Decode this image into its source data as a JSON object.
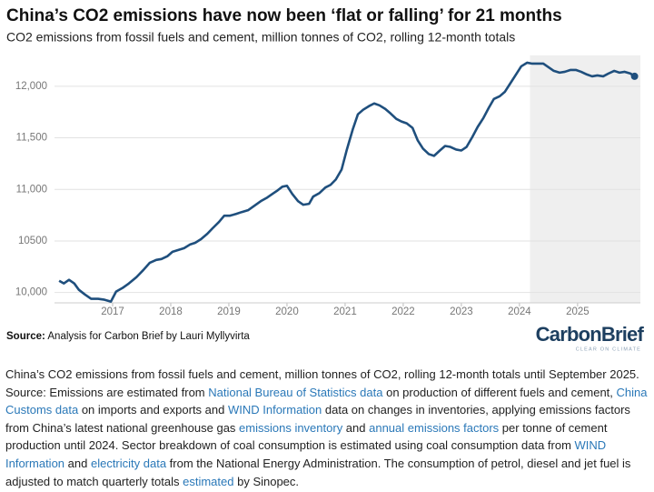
{
  "chart_data": {
    "type": "line",
    "title": "China’s CO2 emissions have now been ‘flat or falling’ for 21 months",
    "subtitle": "CO2 emissions from fossil fuels and cement, million tonnes of CO2, rolling 12-month totals",
    "x": [
      2016.08,
      2016.16,
      2016.25,
      2016.34,
      2016.42,
      2016.52,
      2016.63,
      2016.75,
      2016.86,
      2016.97,
      2017.06,
      2017.17,
      2017.28,
      2017.41,
      2017.53,
      2017.64,
      2017.75,
      2017.84,
      2017.94,
      2018.03,
      2018.13,
      2018.23,
      2018.33,
      2018.42,
      2018.52,
      2018.63,
      2018.72,
      2018.83,
      2018.92,
      2019.02,
      2019.13,
      2019.22,
      2019.33,
      2019.44,
      2019.55,
      2019.66,
      2019.75,
      2019.84,
      2019.92,
      2020.0,
      2020.09,
      2020.19,
      2020.28,
      2020.38,
      2020.45,
      2020.56,
      2020.66,
      2020.75,
      2020.84,
      2020.94,
      2021.03,
      2021.13,
      2021.22,
      2021.31,
      2021.41,
      2021.5,
      2021.59,
      2021.69,
      2021.78,
      2021.88,
      2021.97,
      2022.06,
      2022.16,
      2022.25,
      2022.34,
      2022.44,
      2022.53,
      2022.63,
      2022.72,
      2022.81,
      2022.91,
      2023.0,
      2023.09,
      2023.19,
      2023.28,
      2023.38,
      2023.47,
      2023.56,
      2023.66,
      2023.75,
      2023.84,
      2023.94,
      2024.03,
      2024.13,
      2024.22,
      2024.31,
      2024.41,
      2024.5,
      2024.59,
      2024.69,
      2024.78,
      2024.88,
      2024.97,
      2025.06,
      2025.16,
      2025.25,
      2025.34,
      2025.44,
      2025.53,
      2025.63,
      2025.72,
      2025.81,
      2025.91,
      2025.98
    ],
    "series": [
      {
        "name": "CO2 emissions",
        "color": "#1f4f7d",
        "values": [
          10114,
          10088,
          10123,
          10088,
          10026,
          9982,
          9939,
          9939,
          9930,
          9912,
          10009,
          10044,
          10088,
          10149,
          10219,
          10289,
          10316,
          10325,
          10351,
          10395,
          10412,
          10430,
          10465,
          10482,
          10517,
          10570,
          10623,
          10684,
          10745,
          10745,
          10763,
          10780,
          10798,
          10842,
          10886,
          10921,
          10956,
          10991,
          11026,
          11035,
          10956,
          10886,
          10851,
          10860,
          10930,
          10965,
          11018,
          11044,
          11096,
          11193,
          11386,
          11579,
          11728,
          11772,
          11807,
          11833,
          11815,
          11780,
          11737,
          11684,
          11658,
          11640,
          11596,
          11474,
          11395,
          11342,
          11325,
          11377,
          11421,
          11412,
          11386,
          11377,
          11412,
          11509,
          11605,
          11693,
          11789,
          11877,
          11903,
          11947,
          12026,
          12114,
          12193,
          12228,
          12219,
          12219,
          12219,
          12184,
          12149,
          12132,
          12140,
          12158,
          12158,
          12140,
          12114,
          12096,
          12105,
          12096,
          12123,
          12149,
          12132,
          12140,
          12123,
          12096
        ]
      }
    ],
    "xlim": [
      2016,
      2026.08
    ],
    "ylim": [
      9900,
      12300
    ],
    "xticks": [
      2017,
      2018,
      2019,
      2020,
      2021,
      2022,
      2023,
      2024,
      2025
    ],
    "yticks": [
      {
        "value": 10000,
        "label": "10,000"
      },
      10500,
      {
        "value": 11000,
        "label": "11,000"
      },
      {
        "value": 11500,
        "label": "11,500"
      },
      {
        "value": 12000,
        "label": "12,000"
      }
    ],
    "grid": true,
    "highlight_xrange": [
      2024.18,
      2026.08
    ],
    "highlight_color": "#efefef",
    "end_marker": true
  },
  "source_label": "Source:",
  "source_text": "Analysis for Carbon Brief by Lauri Myllyvirta",
  "logo": {
    "word1": "Carbon",
    "word2": "Brief",
    "tagline": "CLEAR ON CLIMATE"
  },
  "caption": [
    {
      "text": "China’s CO2 emissions from fossil fuels and cement, million tonnes of CO2, rolling 12-month totals until September 2025. Source: Emissions are estimated from ",
      "link": false
    },
    {
      "text": "National Bureau of Statistics data",
      "link": true
    },
    {
      "text": " on production of different fuels and cement, ",
      "link": false
    },
    {
      "text": "China Customs data",
      "link": true
    },
    {
      "text": " on imports and exports and ",
      "link": false
    },
    {
      "text": "WIND Information",
      "link": true
    },
    {
      "text": " data on changes in inventories, applying emissions factors from China’s latest national greenhouse gas ",
      "link": false
    },
    {
      "text": "emissions inventory",
      "link": true
    },
    {
      "text": " and ",
      "link": false
    },
    {
      "text": "annual emissions factors",
      "link": true
    },
    {
      "text": " per tonne of cement production until 2024. Sector breakdown of coal consumption is estimated using coal consumption data from ",
      "link": false
    },
    {
      "text": "WIND Information",
      "link": true
    },
    {
      "text": " and ",
      "link": false
    },
    {
      "text": "electricity data",
      "link": true
    },
    {
      "text": " from the National Energy Administration. The consumption of petrol, diesel and jet fuel is adjusted to match quarterly totals ",
      "link": false
    },
    {
      "text": "estimated",
      "link": true
    },
    {
      "text": " by Sinopec.",
      "link": false
    }
  ]
}
